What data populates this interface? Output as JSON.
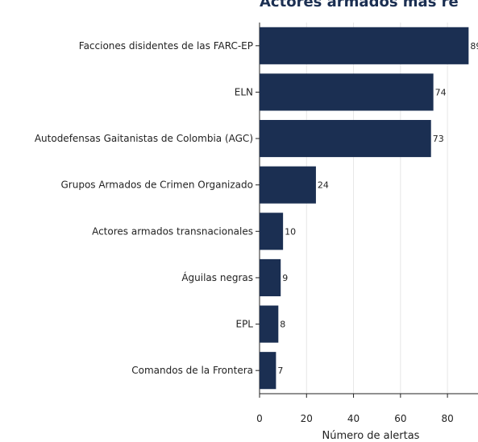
{
  "chart_data": {
    "type": "barh",
    "title": "Actores armados más re",
    "categories": [
      "Facciones disidentes de las  FARC-EP",
      "ELN",
      "Autodefensas Gaitanistas de Colombia (AGC)",
      "Grupos Armados de Crimen Organizado",
      "Actores armados transnacionales",
      "Águilas negras",
      "EPL",
      "Comandos de la Frontera"
    ],
    "values": [
      89,
      74,
      73,
      24,
      10,
      9,
      8,
      7
    ],
    "color": "#1b2f52",
    "x_label": "Número de alertas",
    "xlim": [
      0,
      93
    ],
    "xticks": [
      0,
      20,
      40,
      60,
      80
    ],
    "grid": true
  }
}
